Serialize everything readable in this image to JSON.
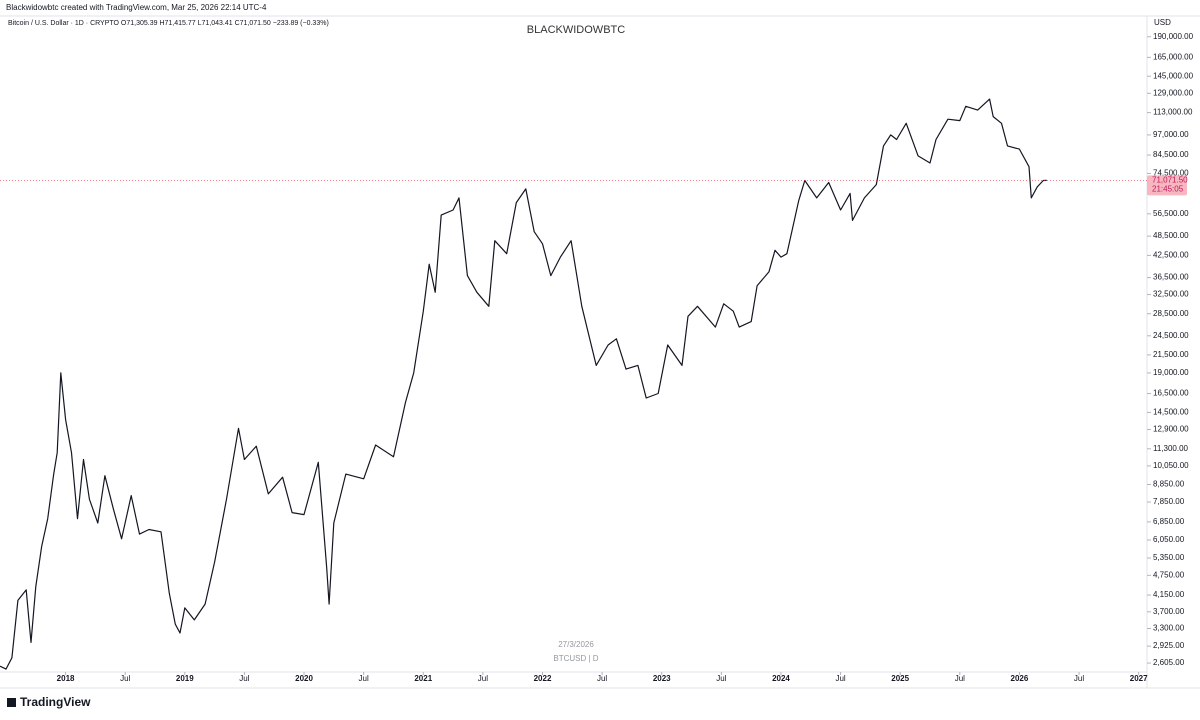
{
  "header": {
    "credit": "Blackwidowbtc created with TradingView.com, Mar 25, 2026 22:14 UTC-4",
    "logo": "TradingView"
  },
  "chart_data": {
    "type": "line",
    "symbol_line": "Bitcoin / U.S. Dollar · 1D · CRYPTO   O71,305.39   H71,415.77   L71,043.41   C71,071.50   −233.89 (−0.33%)",
    "title": "BLACKWIDOWBTC",
    "y_axis_label": "USD",
    "watermark_date": "27/3/2026",
    "watermark_symbol": "BTCUSD | D",
    "log_scale": true,
    "color": "#131722",
    "last_price": {
      "value": 71071.5,
      "label": "71,071.50"
    },
    "countdown": "21:45:05",
    "xlim": [
      2017.45,
      2027.07
    ],
    "ylim": [
      2450,
      199000
    ],
    "xticks": [
      {
        "value": 2018,
        "label": "2018"
      },
      {
        "value": 2018.5,
        "label": "Jul"
      },
      {
        "value": 2019,
        "label": "2019"
      },
      {
        "value": 2019.5,
        "label": "Jul"
      },
      {
        "value": 2020,
        "label": "2020"
      },
      {
        "value": 2020.5,
        "label": "Jul"
      },
      {
        "value": 2021,
        "label": "2021"
      },
      {
        "value": 2021.5,
        "label": "Jul"
      },
      {
        "value": 2022,
        "label": "2022"
      },
      {
        "value": 2022.5,
        "label": "Jul"
      },
      {
        "value": 2023,
        "label": "2023"
      },
      {
        "value": 2023.5,
        "label": "Jul"
      },
      {
        "value": 2024,
        "label": "2024"
      },
      {
        "value": 2024.5,
        "label": "Jul"
      },
      {
        "value": 2025,
        "label": "2025"
      },
      {
        "value": 2025.5,
        "label": "Jul"
      },
      {
        "value": 2026,
        "label": "2026"
      },
      {
        "value": 2026.5,
        "label": "Jul"
      },
      {
        "value": 2027,
        "label": "2027"
      }
    ],
    "yticks": [
      {
        "value": 190000,
        "label": "190,000.00"
      },
      {
        "value": 165000,
        "label": "165,000.00"
      },
      {
        "value": 145000,
        "label": "145,000.00"
      },
      {
        "value": 129000,
        "label": "129,000.00"
      },
      {
        "value": 113000,
        "label": "113,000.00"
      },
      {
        "value": 97000,
        "label": "97,000.00"
      },
      {
        "value": 84500,
        "label": "84,500.00"
      },
      {
        "value": 74500,
        "label": "74,500.00"
      },
      {
        "value": 56500,
        "label": "56,500.00"
      },
      {
        "value": 48500,
        "label": "48,500.00"
      },
      {
        "value": 42500,
        "label": "42,500.00"
      },
      {
        "value": 36500,
        "label": "36,500.00"
      },
      {
        "value": 32500,
        "label": "32,500.00"
      },
      {
        "value": 28500,
        "label": "28,500.00"
      },
      {
        "value": 24500,
        "label": "24,500.00"
      },
      {
        "value": 21500,
        "label": "21,500.00"
      },
      {
        "value": 19000,
        "label": "19,000.00"
      },
      {
        "value": 16500,
        "label": "16,500.00"
      },
      {
        "value": 14500,
        "label": "14,500.00"
      },
      {
        "value": 12900,
        "label": "12,900.00"
      },
      {
        "value": 11300,
        "label": "11,300.00"
      },
      {
        "value": 10050,
        "label": "10,050.00"
      },
      {
        "value": 8850,
        "label": "8,850.00"
      },
      {
        "value": 7850,
        "label": "7,850.00"
      },
      {
        "value": 6850,
        "label": "6,850.00"
      },
      {
        "value": 6050,
        "label": "6,050.00"
      },
      {
        "value": 5350,
        "label": "5,350.00"
      },
      {
        "value": 4750,
        "label": "4,750.00"
      },
      {
        "value": 4150,
        "label": "4,150.00"
      },
      {
        "value": 3700,
        "label": "3,700.00"
      },
      {
        "value": 3300,
        "label": "3,300.00"
      },
      {
        "value": 2925,
        "label": "2,925.00"
      },
      {
        "value": 2605,
        "label": "2,605.00"
      }
    ],
    "x": [
      2017.45,
      2017.5,
      2017.55,
      2017.6,
      2017.67,
      2017.71,
      2017.75,
      2017.8,
      2017.85,
      2017.9,
      2017.93,
      2017.96,
      2018.0,
      2018.05,
      2018.1,
      2018.15,
      2018.2,
      2018.27,
      2018.33,
      2018.4,
      2018.47,
      2018.55,
      2018.62,
      2018.7,
      2018.8,
      2018.87,
      2018.92,
      2018.96,
      2019.0,
      2019.08,
      2019.17,
      2019.25,
      2019.35,
      2019.45,
      2019.5,
      2019.6,
      2019.7,
      2019.82,
      2019.9,
      2020.0,
      2020.12,
      2020.19,
      2020.21,
      2020.25,
      2020.35,
      2020.5,
      2020.6,
      2020.75,
      2020.85,
      2020.92,
      2021.0,
      2021.05,
      2021.1,
      2021.15,
      2021.25,
      2021.3,
      2021.37,
      2021.45,
      2021.55,
      2021.6,
      2021.7,
      2021.78,
      2021.86,
      2021.93,
      2022.0,
      2022.07,
      2022.15,
      2022.24,
      2022.33,
      2022.45,
      2022.55,
      2022.62,
      2022.7,
      2022.8,
      2022.87,
      2022.97,
      2023.05,
      2023.17,
      2023.22,
      2023.3,
      2023.45,
      2023.52,
      2023.6,
      2023.65,
      2023.75,
      2023.8,
      2023.9,
      2023.95,
      2024.0,
      2024.05,
      2024.15,
      2024.2,
      2024.3,
      2024.4,
      2024.5,
      2024.58,
      2024.6,
      2024.7,
      2024.8,
      2024.86,
      2024.92,
      2024.97,
      2025.05,
      2025.15,
      2025.25,
      2025.3,
      2025.4,
      2025.5,
      2025.55,
      2025.65,
      2025.75,
      2025.78,
      2025.85,
      2025.9,
      2026.0,
      2026.08,
      2026.1,
      2026.15,
      2026.2,
      2026.23
    ],
    "values": [
      2550,
      2500,
      2700,
      4000,
      4300,
      3000,
      4400,
      5800,
      7000,
      9500,
      11000,
      19000,
      13800,
      11000,
      7000,
      10500,
      8000,
      6800,
      9400,
      7500,
      6100,
      8200,
      6300,
      6500,
      6400,
      4200,
      3400,
      3200,
      3800,
      3500,
      3900,
      5200,
      8000,
      13000,
      10500,
      11500,
      8300,
      9300,
      7300,
      7200,
      10300,
      5000,
      3900,
      6800,
      9500,
      9200,
      11600,
      10700,
      15500,
      19000,
      29000,
      40000,
      33000,
      56000,
      58000,
      63000,
      37000,
      33000,
      30000,
      47000,
      43000,
      61000,
      67000,
      50000,
      46000,
      37000,
      42000,
      47000,
      30000,
      20000,
      23000,
      24000,
      19500,
      20000,
      16000,
      16500,
      23000,
      20000,
      28000,
      30000,
      26000,
      30500,
      29000,
      26000,
      27000,
      34500,
      38000,
      44000,
      42000,
      43000,
      62000,
      71000,
      63000,
      70000,
      58000,
      65000,
      54000,
      63000,
      69000,
      90000,
      97000,
      94000,
      105000,
      84000,
      80000,
      94000,
      108000,
      107000,
      118000,
      115000,
      124000,
      110000,
      105000,
      90000,
      88000,
      78000,
      63000,
      68000,
      71000,
      71071.5
    ]
  }
}
